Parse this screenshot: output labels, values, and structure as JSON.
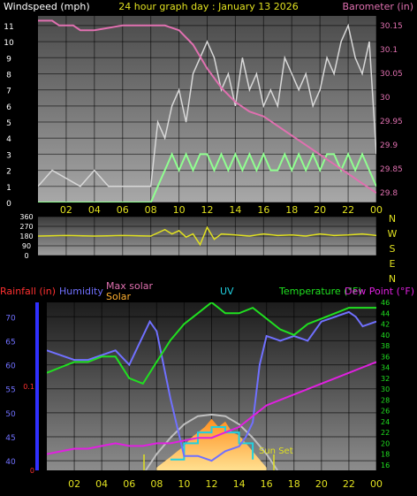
{
  "chart_data": [
    {
      "type": "line",
      "title": "24 hour graph day : January 13 2026",
      "left_axis_label": "Windspeed (mph)",
      "right_axis_label": "Barometer (in)",
      "x_ticks": [
        "02",
        "04",
        "06",
        "08",
        "10",
        "12",
        "14",
        "16",
        "18",
        "20",
        "22",
        "00"
      ],
      "left_ticks": [
        "0",
        "1",
        "2",
        "3",
        "4",
        "5",
        "6",
        "7",
        "8",
        "9",
        "10",
        "11"
      ],
      "left_ylim": [
        0,
        11.6
      ],
      "right_ticks": [
        "29.8",
        "29.85",
        "29.9",
        "29.95",
        "30",
        "30.05",
        "30.1",
        "30.15"
      ],
      "right_ylim": [
        29.78,
        30.17
      ],
      "x_range": [
        0,
        24
      ],
      "series": [
        {
          "key": "gust",
          "color": "#d8d8d8",
          "x": [
            0,
            1,
            2,
            3,
            4,
            5,
            6,
            7,
            8,
            8.5,
            9,
            9.5,
            10,
            10.5,
            11,
            11.5,
            12,
            12.5,
            13,
            13.5,
            14,
            14.5,
            15,
            15.5,
            16,
            16.5,
            17,
            17.5,
            18,
            18.5,
            19,
            19.5,
            20,
            20.5,
            21,
            21.5,
            22,
            22.5,
            23,
            23.5,
            24
          ],
          "values": [
            1,
            2,
            1.5,
            1,
            2,
            1,
            1,
            1,
            1,
            5,
            4,
            6,
            7,
            5,
            8,
            9,
            10,
            9,
            7,
            8,
            6,
            9,
            7,
            8,
            6,
            7,
            6,
            9,
            8,
            7,
            8,
            6,
            7,
            9,
            8,
            10,
            11,
            9,
            8,
            10,
            3
          ]
        },
        {
          "key": "wind_speed",
          "color": "#90ff90",
          "x": [
            0,
            1,
            2,
            3,
            4,
            5,
            6,
            7,
            8,
            8.5,
            9,
            9.5,
            10,
            10.5,
            11,
            11.5,
            12,
            12.5,
            13,
            13.5,
            14,
            14.5,
            15,
            15.5,
            16,
            16.5,
            17,
            17.5,
            18,
            18.5,
            19,
            19.5,
            20,
            20.5,
            21,
            21.5,
            22,
            22.5,
            23,
            23.5,
            24
          ],
          "values": [
            0,
            0,
            0,
            0,
            0,
            0,
            0,
            0,
            0,
            1,
            2,
            3,
            2,
            3,
            2,
            3,
            3,
            2,
            3,
            2,
            3,
            2,
            3,
            2,
            3,
            2,
            2,
            3,
            2,
            3,
            2,
            3,
            2,
            3,
            3,
            2,
            3,
            2,
            3,
            2,
            1
          ]
        },
        {
          "key": "barometer",
          "color": "#e070b0",
          "x": [
            0,
            1,
            1.5,
            2,
            2.5,
            3,
            3.5,
            4,
            5,
            6,
            7,
            8,
            9,
            10,
            11,
            12,
            13,
            14,
            15,
            16,
            17,
            18,
            19,
            20,
            21,
            22,
            23,
            24
          ],
          "values": [
            30.16,
            30.16,
            30.15,
            30.15,
            30.15,
            30.14,
            30.14,
            30.14,
            30.145,
            30.15,
            30.15,
            30.15,
            30.15,
            30.14,
            30.11,
            30.06,
            30.02,
            29.99,
            29.97,
            29.96,
            29.94,
            29.92,
            29.9,
            29.88,
            29.86,
            29.84,
            29.82,
            29.8
          ]
        }
      ]
    },
    {
      "type": "line",
      "compass_labels": [
        "N",
        "W",
        "S",
        "E",
        "N"
      ],
      "left_ticks": [
        "0",
        "90",
        "180",
        "270",
        "360"
      ],
      "left_ylim": [
        0,
        360
      ],
      "x_range": [
        0,
        24
      ],
      "series": [
        {
          "key": "wind_direction",
          "color": "#e0e020",
          "x": [
            0,
            2,
            4,
            6,
            8,
            9,
            9.5,
            10,
            10.5,
            11,
            11.5,
            12,
            12.5,
            13,
            14,
            15,
            16,
            17,
            18,
            19,
            20,
            21,
            22,
            23,
            24
          ],
          "values": [
            180,
            185,
            180,
            185,
            180,
            240,
            200,
            230,
            170,
            200,
            100,
            260,
            150,
            200,
            190,
            180,
            200,
            185,
            190,
            180,
            200,
            185,
            190,
            200,
            185
          ]
        }
      ]
    },
    {
      "type": "line",
      "legend": [
        "Rainfall (in)",
        "Humidity",
        "Max solar",
        "Solar",
        "UV",
        "Temperature (°F)",
        "Dew Point (°F)"
      ],
      "x_ticks": [
        "02",
        "04",
        "06",
        "08",
        "10",
        "12",
        "14",
        "16",
        "18",
        "20",
        "22",
        "00"
      ],
      "x_range": [
        0,
        24
      ],
      "humidity_ticks": [
        "40",
        "45",
        "50",
        "55",
        "60",
        "65",
        "70"
      ],
      "humidity_ylim": [
        38,
        73
      ],
      "rain_ticks": [
        "0",
        "0.1"
      ],
      "rain_ylim": [
        0,
        0.2
      ],
      "temp_ticks": [
        "16",
        "18",
        "20",
        "22",
        "24",
        "26",
        "28",
        "30",
        "32",
        "34",
        "36",
        "38",
        "40",
        "42",
        "44",
        "46"
      ],
      "temp_ylim": [
        15,
        46
      ],
      "annotation": "Sun Set",
      "series": [
        {
          "key": "humidity",
          "color": "#7070ff",
          "x": [
            0,
            1,
            2,
            3,
            4,
            5,
            6,
            7,
            7.5,
            8,
            9,
            10,
            11,
            12,
            13,
            14,
            14.5,
            15,
            15.5,
            16,
            17,
            18,
            19,
            20,
            21,
            22,
            22.5,
            23,
            24
          ],
          "values": [
            63,
            62,
            61,
            61,
            62,
            63,
            60,
            66,
            69,
            67,
            53,
            41,
            41,
            40,
            42,
            43,
            45,
            48,
            60,
            66,
            65,
            66,
            65,
            69,
            70,
            71,
            70,
            68,
            69
          ]
        },
        {
          "key": "temperature",
          "color": "#20e020",
          "x": [
            0,
            1,
            2,
            3,
            4,
            5,
            6,
            7,
            8,
            9,
            10,
            11,
            12,
            13,
            14,
            15,
            16,
            17,
            18,
            19,
            20,
            21,
            22,
            23,
            24
          ],
          "values": [
            33,
            34,
            35,
            35,
            36,
            36,
            32,
            31,
            35,
            39,
            42,
            44,
            46,
            44,
            44,
            45,
            43,
            41,
            40,
            42,
            43,
            44,
            45,
            45,
            45
          ]
        },
        {
          "key": "dew_point",
          "color": "#e020e0",
          "x": [
            0,
            1,
            2,
            3,
            4,
            5,
            6,
            7,
            8,
            9,
            10,
            11,
            12,
            13,
            14,
            15,
            16,
            17,
            18,
            19,
            20,
            21,
            22,
            23,
            24
          ],
          "values": [
            18,
            18.5,
            19,
            19,
            19.5,
            20,
            19.5,
            19.5,
            20,
            20,
            20.5,
            21,
            21,
            22,
            23,
            25,
            27,
            28,
            29,
            30,
            31,
            32,
            33,
            34,
            35
          ]
        },
        {
          "key": "max_solar",
          "color": "#c0c0c0",
          "x": [
            7.2,
            8,
            9,
            10,
            11,
            12,
            13,
            14,
            15,
            16,
            16.8
          ],
          "values": [
            15,
            18,
            21,
            23.5,
            25,
            25.3,
            25,
            23.5,
            21,
            18,
            15
          ]
        },
        {
          "key": "solar",
          "color": "#ffb030",
          "x": [
            8,
            8.5,
            9,
            9.5,
            10,
            10.5,
            11,
            11.5,
            12,
            12.5,
            13,
            13.5,
            14,
            14.5,
            15,
            15.5,
            16
          ],
          "values": [
            15.5,
            16.5,
            17.5,
            18.5,
            19.5,
            21,
            22,
            23,
            24.5,
            23,
            24,
            22,
            21.5,
            20,
            18.5,
            17,
            15.5
          ]
        },
        {
          "key": "uv",
          "color": "#20d0e0",
          "x": [
            9,
            10,
            10,
            11,
            11,
            12,
            12,
            13,
            13,
            14,
            14,
            15,
            15
          ],
          "values": [
            17,
            17,
            20,
            20,
            22,
            22,
            23,
            23,
            22,
            22,
            20,
            20,
            17
          ]
        }
      ]
    }
  ]
}
